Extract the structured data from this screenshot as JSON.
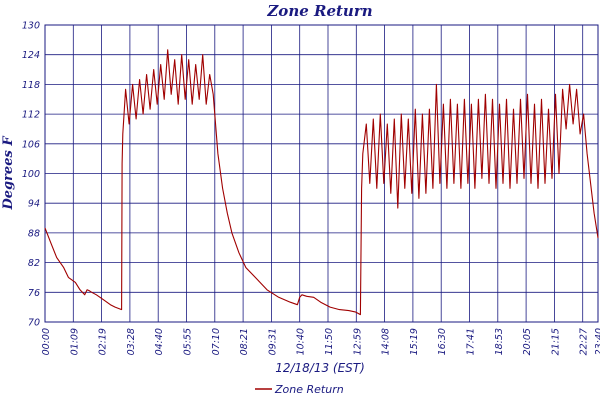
{
  "chart_data": {
    "type": "line",
    "title": "Zone Return",
    "xlabel": "12/18/13 (EST)",
    "ylabel": "Degrees F",
    "ylim": [
      70,
      130
    ],
    "yticks": [
      "70",
      "76",
      "82",
      "88",
      "94",
      "100",
      "106",
      "112",
      "118",
      "124",
      "130"
    ],
    "xticks": [
      "00:00",
      "01:09",
      "02:19",
      "03:28",
      "04:40",
      "05:55",
      "07:10",
      "08:21",
      "09:31",
      "10:40",
      "11:50",
      "12:59",
      "14:08",
      "15:19",
      "16:30",
      "17:41",
      "18:53",
      "20:05",
      "21:15",
      "22:27",
      "23:36",
      "23:40"
    ],
    "grid": true,
    "legend_position": "bottom-center",
    "series": [
      {
        "name": "Zone Return",
        "color": "#a00000",
        "x_hours": [
          0.0,
          0.25,
          0.5,
          0.8,
          1.0,
          1.3,
          1.5,
          1.7,
          1.8,
          1.9,
          2.0,
          2.2,
          2.5,
          2.8,
          3.0,
          3.28,
          3.3,
          3.33,
          3.45,
          3.6,
          3.75,
          3.9,
          4.05,
          4.2,
          4.35,
          4.5,
          4.65,
          4.8,
          4.95,
          5.1,
          5.25,
          5.4,
          5.55,
          5.7,
          5.85,
          6.0,
          6.15,
          6.3,
          6.45,
          6.6,
          6.75,
          6.9,
          7.05,
          7.2,
          7.4,
          7.6,
          7.8,
          8.0,
          8.3,
          8.6,
          9.0,
          9.5,
          10.0,
          10.5,
          10.8,
          10.9,
          11.0,
          11.2,
          11.5,
          11.8,
          12.2,
          12.6,
          13.0,
          13.3,
          13.5,
          13.55,
          13.6,
          13.75,
          13.9,
          14.05,
          14.2,
          14.35,
          14.5,
          14.65,
          14.8,
          14.95,
          15.1,
          15.25,
          15.4,
          15.55,
          15.7,
          15.85,
          16.0,
          16.15,
          16.3,
          16.45,
          16.6,
          16.75,
          16.9,
          17.05,
          17.2,
          17.35,
          17.5,
          17.65,
          17.8,
          17.95,
          18.1,
          18.25,
          18.4,
          18.55,
          18.7,
          18.85,
          19.0,
          19.15,
          19.3,
          19.45,
          19.6,
          19.75,
          19.9,
          20.05,
          20.2,
          20.35,
          20.5,
          20.65,
          20.8,
          20.95,
          21.1,
          21.25,
          21.4,
          21.55,
          21.7,
          21.85,
          22.0,
          22.15,
          22.3,
          22.45,
          22.6,
          22.75,
          22.9,
          23.05,
          23.2,
          23.35,
          23.5,
          23.667
        ],
        "values": [
          89,
          86,
          83,
          81,
          79,
          78,
          76.5,
          75.5,
          76.5,
          76.3,
          76,
          75.5,
          74.5,
          73.5,
          73,
          72.5,
          102,
          108,
          117,
          110,
          118,
          111,
          119,
          112,
          120,
          113,
          121,
          114,
          122,
          115,
          125,
          116,
          123,
          114,
          124,
          115,
          123,
          114,
          122,
          115,
          124,
          114,
          120,
          116,
          104,
          97,
          92,
          88,
          84,
          81,
          79,
          76.5,
          75,
          74,
          73.5,
          75,
          75.5,
          75.2,
          75,
          74,
          73,
          72.5,
          72.3,
          72,
          71.5,
          97,
          104,
          110,
          98,
          111,
          97,
          112,
          98,
          110,
          96,
          111,
          93,
          112,
          97,
          111,
          96,
          113,
          95,
          112,
          96,
          113,
          97,
          118,
          98,
          114,
          97,
          115,
          98,
          114,
          97,
          115,
          98,
          114,
          97,
          115,
          99,
          116,
          98,
          115,
          97,
          114,
          98,
          115,
          97,
          113,
          98,
          115,
          99,
          116,
          98,
          114,
          97,
          115,
          98,
          113,
          99,
          116,
          100,
          117,
          109,
          118,
          110,
          117,
          108,
          112,
          104,
          98,
          92,
          87
        ]
      }
    ]
  }
}
